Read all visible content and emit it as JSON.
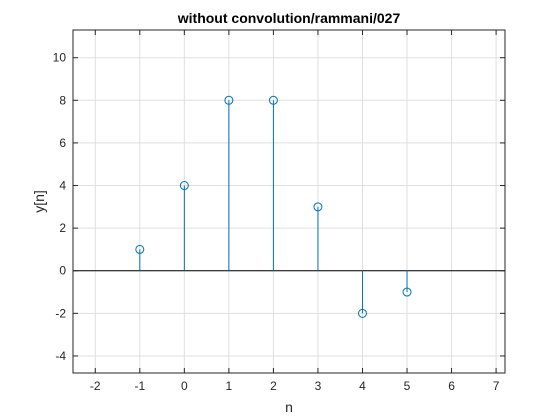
{
  "chart_data": {
    "type": "stem",
    "title": "without convolution/rammani/027",
    "xlabel": "n",
    "ylabel": "y[n]",
    "xlim": [
      -2.5,
      7.2
    ],
    "ylim": [
      -4.8,
      11.3
    ],
    "xticks": [
      -2,
      -1,
      0,
      1,
      2,
      3,
      4,
      5,
      6,
      7
    ],
    "yticks": [
      -4,
      -2,
      0,
      2,
      4,
      6,
      8,
      10
    ],
    "grid": true,
    "baseline": 0,
    "series": [
      {
        "x": [
          -1,
          0,
          1,
          2,
          3,
          4,
          5
        ],
        "values": [
          1,
          4,
          8,
          8,
          3,
          -2,
          -1
        ]
      }
    ],
    "colors": {
      "stem": "#0072bd",
      "baseline": "#000000",
      "grid": "#dfdfdf",
      "axis": "#262626"
    }
  }
}
